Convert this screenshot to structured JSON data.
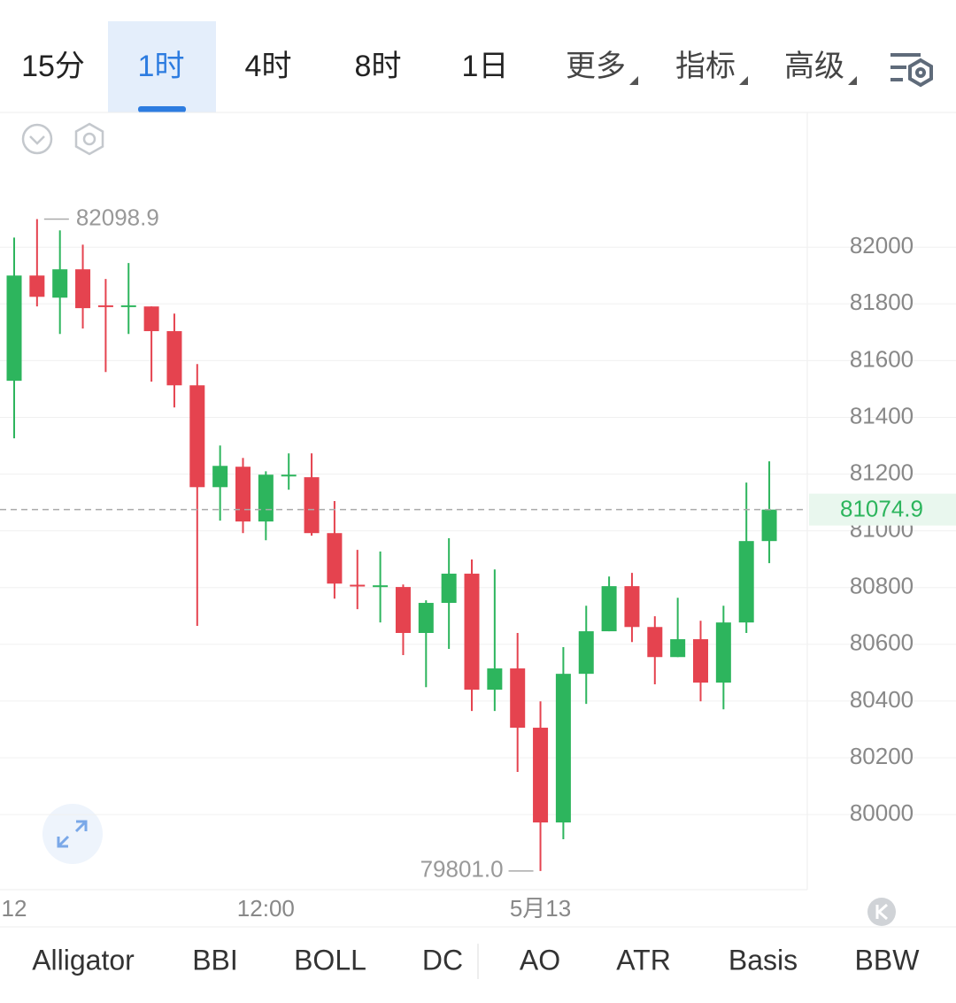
{
  "toolbar": {
    "tabs": [
      "15分",
      "1时",
      "4时",
      "8时",
      "1日"
    ],
    "active_tab": 1,
    "menus": [
      "更多",
      "指标",
      "高级"
    ]
  },
  "chart_data": {
    "type": "candlestick",
    "categories": [
      "12",
      null,
      null,
      null,
      null,
      null,
      null,
      null,
      null,
      null,
      null,
      "12:00",
      null,
      null,
      null,
      null,
      null,
      null,
      null,
      null,
      null,
      null,
      null,
      "5月13",
      null,
      null,
      null,
      null,
      null,
      null,
      null,
      null,
      null,
      null
    ],
    "open": [
      81529,
      81900,
      81822,
      81922,
      81795,
      81792,
      81791,
      81704,
      81513,
      81154,
      81226,
      81033,
      81195,
      81189,
      80992,
      80810,
      80805,
      80802,
      80640,
      80746,
      80849,
      80440,
      80515,
      80306,
      79972,
      80496,
      80646,
      80805,
      80661,
      80555,
      80618,
      80465,
      80677,
      80964
    ],
    "high": [
      82034,
      82098.9,
      82059,
      82009,
      81888,
      81944,
      81791,
      81766,
      81588,
      81301,
      81257,
      81210,
      81273,
      81273,
      81105,
      80933,
      80927,
      80811,
      80755,
      80974,
      80899,
      80864,
      80640,
      80399,
      80590,
      80736,
      80839,
      80852,
      80699,
      80764,
      80683,
      80736,
      81170,
      81245
    ],
    "low": [
      81326,
      81791,
      81694,
      81713,
      81560,
      81694,
      81526,
      81435,
      80665,
      81036,
      80992,
      80967,
      81145,
      80983,
      80761,
      80724,
      80677,
      80562,
      80449,
      80584,
      80365,
      80365,
      80150,
      79801,
      79913,
      80390,
      80646,
      80608,
      80459,
      80555,
      80399,
      80371,
      80640,
      80886
    ],
    "close": [
      81900,
      81825,
      81922,
      81785,
      81792,
      81795,
      81704,
      81513,
      81154,
      81229,
      81033,
      81198,
      81198,
      80992,
      80814,
      80808,
      80808,
      80640,
      80746,
      80849,
      80440,
      80515,
      80306,
      79972,
      80496,
      80646,
      80805,
      80661,
      80555,
      80618,
      80465,
      80677,
      80964,
      81074.9
    ],
    "up_color": "#2db55d",
    "down_color": "#e5434f",
    "ylim": [
      79735,
      82475
    ],
    "yticks": [
      80000,
      80200,
      80400,
      80600,
      80800,
      81000,
      81200,
      81400,
      81600,
      81800,
      82000
    ],
    "grid": true,
    "annotations": [
      {
        "value": 82098.9,
        "label": "82098.9"
      },
      {
        "value": 79801,
        "label": "79801.0"
      }
    ]
  },
  "indicators": [
    "Alligator",
    "BBI",
    "BOLL",
    "DC",
    "AO",
    "ATR",
    "Basis",
    "BBW"
  ]
}
